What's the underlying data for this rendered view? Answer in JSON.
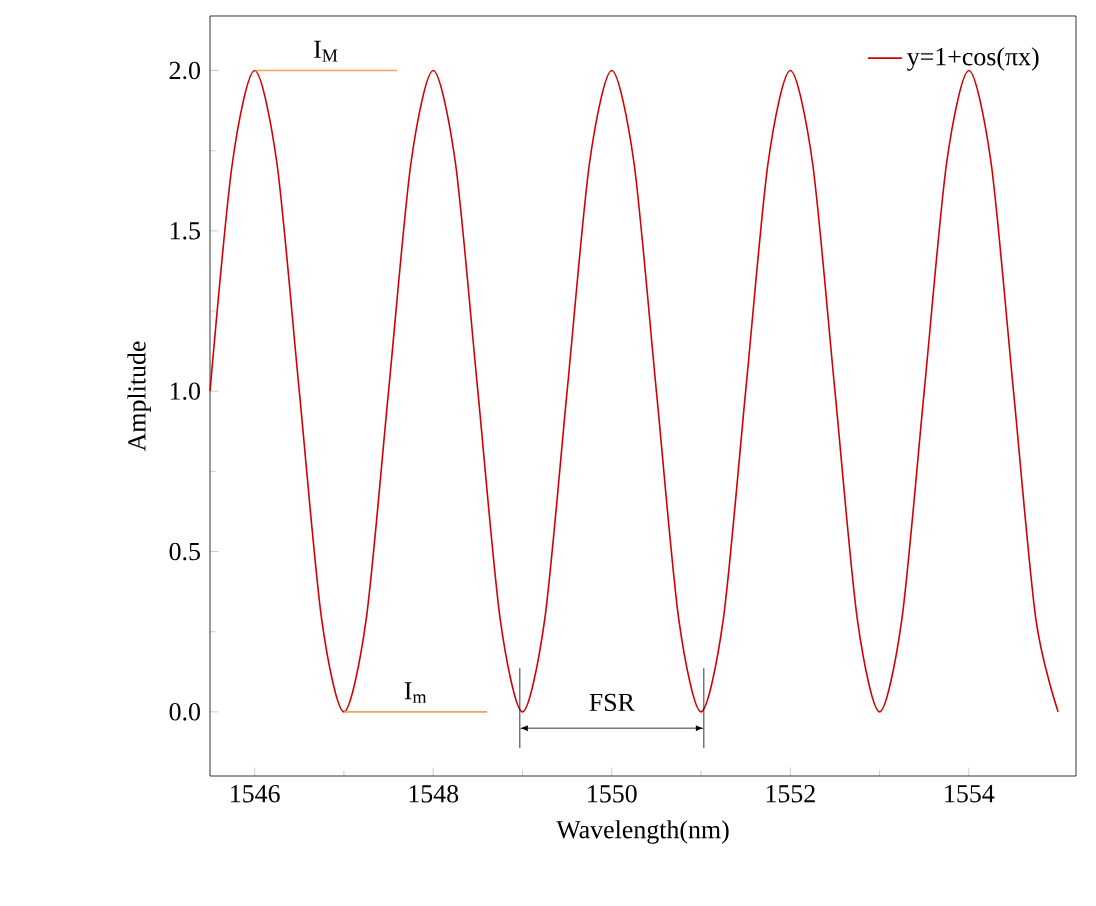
{
  "chart_data": {
    "type": "line",
    "xlabel": "Wavelength(nm)",
    "ylabel": "Amplitude",
    "x": [
      1545.5,
      1545.75,
      1546,
      1546.25,
      1546.5,
      1546.75,
      1547,
      1547.25,
      1547.5,
      1547.75,
      1548,
      1548.25,
      1548.5,
      1548.75,
      1549,
      1549.25,
      1549.5,
      1549.75,
      1550,
      1550.25,
      1550.5,
      1550.75,
      1551,
      1551.25,
      1551.5,
      1551.75,
      1552,
      1552.25,
      1552.5,
      1552.75,
      1553,
      1553.25,
      1553.5,
      1553.75,
      1554,
      1554.25,
      1554.5,
      1554.75,
      1555
    ],
    "series": [
      {
        "name": "y=1+cos(πx)",
        "color": "#d40000",
        "values": [
          1,
          1.71,
          2,
          1.71,
          1,
          0.29,
          0,
          0.29,
          1,
          1.71,
          2,
          1.71,
          1,
          0.29,
          0,
          0.29,
          1,
          1.71,
          2,
          1.71,
          1,
          0.29,
          0,
          0.29,
          1,
          1.71,
          2,
          1.71,
          1,
          0.29,
          0,
          0.29,
          1,
          1.71,
          2,
          1.71,
          1,
          0.29,
          0
        ]
      }
    ],
    "xlim": [
      1545.5,
      1555.2
    ],
    "ylim": [
      -0.2,
      2.17
    ],
    "xticks": [
      1546,
      1548,
      1550,
      1552,
      1554
    ],
    "yticks": [
      {
        "value": 0,
        "label": "0.0"
      },
      {
        "value": 0.5,
        "label": "0.5"
      },
      {
        "value": 1,
        "label": "1.0"
      },
      {
        "value": 1.5,
        "label": "1.5"
      },
      {
        "value": 2,
        "label": "2.0"
      }
    ],
    "annotations": [
      "FSR"
    ],
    "ref_lines": [
      {
        "axis": "y",
        "value": 2.0,
        "label": "I$_{M}$",
        "color": "#f5a060"
      },
      {
        "axis": "y",
        "value": 0,
        "label": "I$_{m}$",
        "color": "#f5a060"
      }
    ],
    "legend": "top right",
    "marker": "none",
    "line_style": "solid",
    "grid": false
  }
}
